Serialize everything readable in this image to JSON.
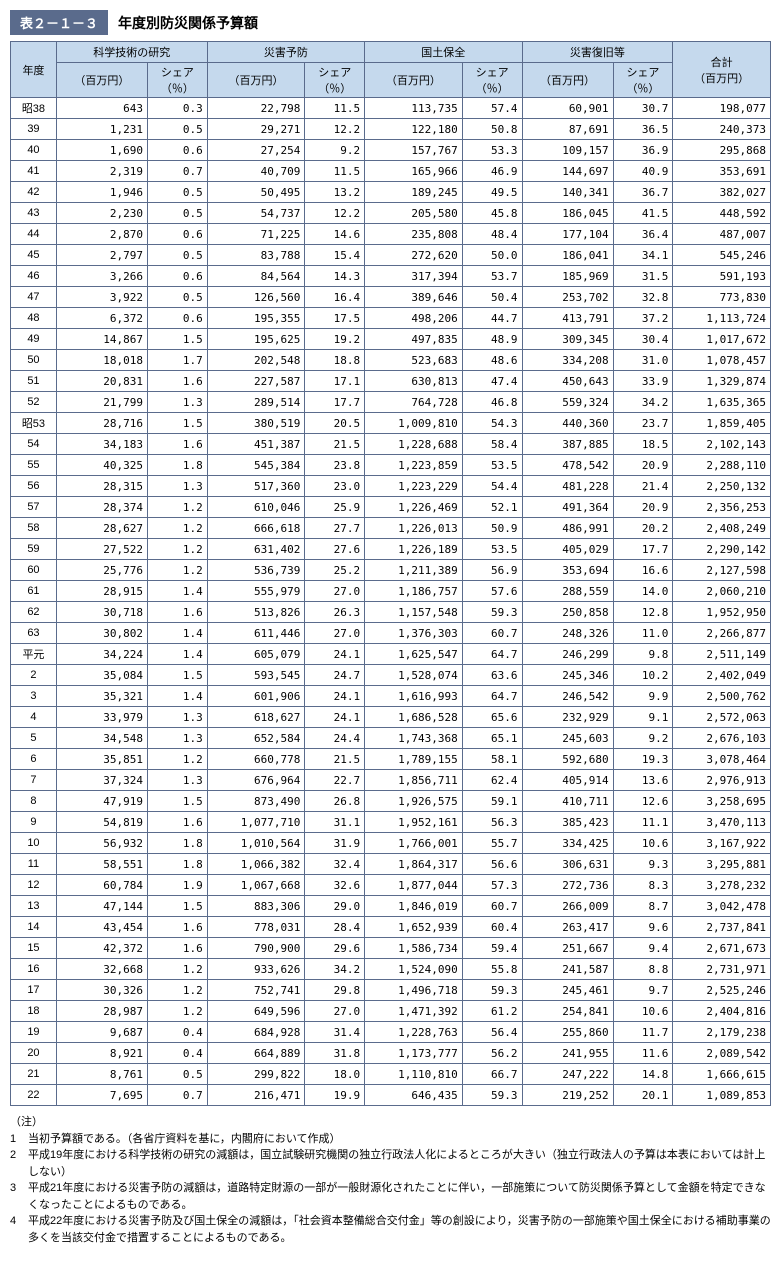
{
  "title": {
    "tag": "表２－１－３",
    "text": "年度別防災関係予算額"
  },
  "table": {
    "type": "table",
    "colors": {
      "header_bg": "#c5d9ed",
      "border": "#5a6b8c",
      "text": "#000000",
      "bg": "#ffffff"
    },
    "header_top": [
      "年度",
      "科学技術の研究",
      "災害予防",
      "国土保全",
      "災害復旧等",
      "合計\n（百万円）"
    ],
    "header_sub_amount": "（百万円）",
    "header_sub_share": "シェア\n（％）",
    "rows": [
      {
        "y": "昭38",
        "a1": "643",
        "s1": "0.3",
        "a2": "22,798",
        "s2": "11.5",
        "a3": "113,735",
        "s3": "57.4",
        "a4": "60,901",
        "s4": "30.7",
        "t": "198,077"
      },
      {
        "y": "39",
        "a1": "1,231",
        "s1": "0.5",
        "a2": "29,271",
        "s2": "12.2",
        "a3": "122,180",
        "s3": "50.8",
        "a4": "87,691",
        "s4": "36.5",
        "t": "240,373"
      },
      {
        "y": "40",
        "a1": "1,690",
        "s1": "0.6",
        "a2": "27,254",
        "s2": "9.2",
        "a3": "157,767",
        "s3": "53.3",
        "a4": "109,157",
        "s4": "36.9",
        "t": "295,868"
      },
      {
        "y": "41",
        "a1": "2,319",
        "s1": "0.7",
        "a2": "40,709",
        "s2": "11.5",
        "a3": "165,966",
        "s3": "46.9",
        "a4": "144,697",
        "s4": "40.9",
        "t": "353,691"
      },
      {
        "y": "42",
        "a1": "1,946",
        "s1": "0.5",
        "a2": "50,495",
        "s2": "13.2",
        "a3": "189,245",
        "s3": "49.5",
        "a4": "140,341",
        "s4": "36.7",
        "t": "382,027"
      },
      {
        "y": "43",
        "a1": "2,230",
        "s1": "0.5",
        "a2": "54,737",
        "s2": "12.2",
        "a3": "205,580",
        "s3": "45.8",
        "a4": "186,045",
        "s4": "41.5",
        "t": "448,592"
      },
      {
        "y": "44",
        "a1": "2,870",
        "s1": "0.6",
        "a2": "71,225",
        "s2": "14.6",
        "a3": "235,808",
        "s3": "48.4",
        "a4": "177,104",
        "s4": "36.4",
        "t": "487,007"
      },
      {
        "y": "45",
        "a1": "2,797",
        "s1": "0.5",
        "a2": "83,788",
        "s2": "15.4",
        "a3": "272,620",
        "s3": "50.0",
        "a4": "186,041",
        "s4": "34.1",
        "t": "545,246"
      },
      {
        "y": "46",
        "a1": "3,266",
        "s1": "0.6",
        "a2": "84,564",
        "s2": "14.3",
        "a3": "317,394",
        "s3": "53.7",
        "a4": "185,969",
        "s4": "31.5",
        "t": "591,193"
      },
      {
        "y": "47",
        "a1": "3,922",
        "s1": "0.5",
        "a2": "126,560",
        "s2": "16.4",
        "a3": "389,646",
        "s3": "50.4",
        "a4": "253,702",
        "s4": "32.8",
        "t": "773,830"
      },
      {
        "y": "48",
        "a1": "6,372",
        "s1": "0.6",
        "a2": "195,355",
        "s2": "17.5",
        "a3": "498,206",
        "s3": "44.7",
        "a4": "413,791",
        "s4": "37.2",
        "t": "1,113,724"
      },
      {
        "y": "49",
        "a1": "14,867",
        "s1": "1.5",
        "a2": "195,625",
        "s2": "19.2",
        "a3": "497,835",
        "s3": "48.9",
        "a4": "309,345",
        "s4": "30.4",
        "t": "1,017,672"
      },
      {
        "y": "50",
        "a1": "18,018",
        "s1": "1.7",
        "a2": "202,548",
        "s2": "18.8",
        "a3": "523,683",
        "s3": "48.6",
        "a4": "334,208",
        "s4": "31.0",
        "t": "1,078,457"
      },
      {
        "y": "51",
        "a1": "20,831",
        "s1": "1.6",
        "a2": "227,587",
        "s2": "17.1",
        "a3": "630,813",
        "s3": "47.4",
        "a4": "450,643",
        "s4": "33.9",
        "t": "1,329,874"
      },
      {
        "y": "52",
        "a1": "21,799",
        "s1": "1.3",
        "a2": "289,514",
        "s2": "17.7",
        "a3": "764,728",
        "s3": "46.8",
        "a4": "559,324",
        "s4": "34.2",
        "t": "1,635,365"
      },
      {
        "y": "昭53",
        "a1": "28,716",
        "s1": "1.5",
        "a2": "380,519",
        "s2": "20.5",
        "a3": "1,009,810",
        "s3": "54.3",
        "a4": "440,360",
        "s4": "23.7",
        "t": "1,859,405"
      },
      {
        "y": "54",
        "a1": "34,183",
        "s1": "1.6",
        "a2": "451,387",
        "s2": "21.5",
        "a3": "1,228,688",
        "s3": "58.4",
        "a4": "387,885",
        "s4": "18.5",
        "t": "2,102,143"
      },
      {
        "y": "55",
        "a1": "40,325",
        "s1": "1.8",
        "a2": "545,384",
        "s2": "23.8",
        "a3": "1,223,859",
        "s3": "53.5",
        "a4": "478,542",
        "s4": "20.9",
        "t": "2,288,110"
      },
      {
        "y": "56",
        "a1": "28,315",
        "s1": "1.3",
        "a2": "517,360",
        "s2": "23.0",
        "a3": "1,223,229",
        "s3": "54.4",
        "a4": "481,228",
        "s4": "21.4",
        "t": "2,250,132"
      },
      {
        "y": "57",
        "a1": "28,374",
        "s1": "1.2",
        "a2": "610,046",
        "s2": "25.9",
        "a3": "1,226,469",
        "s3": "52.1",
        "a4": "491,364",
        "s4": "20.9",
        "t": "2,356,253"
      },
      {
        "y": "58",
        "a1": "28,627",
        "s1": "1.2",
        "a2": "666,618",
        "s2": "27.7",
        "a3": "1,226,013",
        "s3": "50.9",
        "a4": "486,991",
        "s4": "20.2",
        "t": "2,408,249"
      },
      {
        "y": "59",
        "a1": "27,522",
        "s1": "1.2",
        "a2": "631,402",
        "s2": "27.6",
        "a3": "1,226,189",
        "s3": "53.5",
        "a4": "405,029",
        "s4": "17.7",
        "t": "2,290,142"
      },
      {
        "y": "60",
        "a1": "25,776",
        "s1": "1.2",
        "a2": "536,739",
        "s2": "25.2",
        "a3": "1,211,389",
        "s3": "56.9",
        "a4": "353,694",
        "s4": "16.6",
        "t": "2,127,598"
      },
      {
        "y": "61",
        "a1": "28,915",
        "s1": "1.4",
        "a2": "555,979",
        "s2": "27.0",
        "a3": "1,186,757",
        "s3": "57.6",
        "a4": "288,559",
        "s4": "14.0",
        "t": "2,060,210"
      },
      {
        "y": "62",
        "a1": "30,718",
        "s1": "1.6",
        "a2": "513,826",
        "s2": "26.3",
        "a3": "1,157,548",
        "s3": "59.3",
        "a4": "250,858",
        "s4": "12.8",
        "t": "1,952,950"
      },
      {
        "y": "63",
        "a1": "30,802",
        "s1": "1.4",
        "a2": "611,446",
        "s2": "27.0",
        "a3": "1,376,303",
        "s3": "60.7",
        "a4": "248,326",
        "s4": "11.0",
        "t": "2,266,877"
      },
      {
        "y": "平元",
        "a1": "34,224",
        "s1": "1.4",
        "a2": "605,079",
        "s2": "24.1",
        "a3": "1,625,547",
        "s3": "64.7",
        "a4": "246,299",
        "s4": "9.8",
        "t": "2,511,149"
      },
      {
        "y": "2",
        "a1": "35,084",
        "s1": "1.5",
        "a2": "593,545",
        "s2": "24.7",
        "a3": "1,528,074",
        "s3": "63.6",
        "a4": "245,346",
        "s4": "10.2",
        "t": "2,402,049"
      },
      {
        "y": "3",
        "a1": "35,321",
        "s1": "1.4",
        "a2": "601,906",
        "s2": "24.1",
        "a3": "1,616,993",
        "s3": "64.7",
        "a4": "246,542",
        "s4": "9.9",
        "t": "2,500,762"
      },
      {
        "y": "4",
        "a1": "33,979",
        "s1": "1.3",
        "a2": "618,627",
        "s2": "24.1",
        "a3": "1,686,528",
        "s3": "65.6",
        "a4": "232,929",
        "s4": "9.1",
        "t": "2,572,063"
      },
      {
        "y": "5",
        "a1": "34,548",
        "s1": "1.3",
        "a2": "652,584",
        "s2": "24.4",
        "a3": "1,743,368",
        "s3": "65.1",
        "a4": "245,603",
        "s4": "9.2",
        "t": "2,676,103"
      },
      {
        "y": "6",
        "a1": "35,851",
        "s1": "1.2",
        "a2": "660,778",
        "s2": "21.5",
        "a3": "1,789,155",
        "s3": "58.1",
        "a4": "592,680",
        "s4": "19.3",
        "t": "3,078,464"
      },
      {
        "y": "7",
        "a1": "37,324",
        "s1": "1.3",
        "a2": "676,964",
        "s2": "22.7",
        "a3": "1,856,711",
        "s3": "62.4",
        "a4": "405,914",
        "s4": "13.6",
        "t": "2,976,913"
      },
      {
        "y": "8",
        "a1": "47,919",
        "s1": "1.5",
        "a2": "873,490",
        "s2": "26.8",
        "a3": "1,926,575",
        "s3": "59.1",
        "a4": "410,711",
        "s4": "12.6",
        "t": "3,258,695"
      },
      {
        "y": "9",
        "a1": "54,819",
        "s1": "1.6",
        "a2": "1,077,710",
        "s2": "31.1",
        "a3": "1,952,161",
        "s3": "56.3",
        "a4": "385,423",
        "s4": "11.1",
        "t": "3,470,113"
      },
      {
        "y": "10",
        "a1": "56,932",
        "s1": "1.8",
        "a2": "1,010,564",
        "s2": "31.9",
        "a3": "1,766,001",
        "s3": "55.7",
        "a4": "334,425",
        "s4": "10.6",
        "t": "3,167,922"
      },
      {
        "y": "11",
        "a1": "58,551",
        "s1": "1.8",
        "a2": "1,066,382",
        "s2": "32.4",
        "a3": "1,864,317",
        "s3": "56.6",
        "a4": "306,631",
        "s4": "9.3",
        "t": "3,295,881"
      },
      {
        "y": "12",
        "a1": "60,784",
        "s1": "1.9",
        "a2": "1,067,668",
        "s2": "32.6",
        "a3": "1,877,044",
        "s3": "57.3",
        "a4": "272,736",
        "s4": "8.3",
        "t": "3,278,232"
      },
      {
        "y": "13",
        "a1": "47,144",
        "s1": "1.5",
        "a2": "883,306",
        "s2": "29.0",
        "a3": "1,846,019",
        "s3": "60.7",
        "a4": "266,009",
        "s4": "8.7",
        "t": "3,042,478"
      },
      {
        "y": "14",
        "a1": "43,454",
        "s1": "1.6",
        "a2": "778,031",
        "s2": "28.4",
        "a3": "1,652,939",
        "s3": "60.4",
        "a4": "263,417",
        "s4": "9.6",
        "t": "2,737,841"
      },
      {
        "y": "15",
        "a1": "42,372",
        "s1": "1.6",
        "a2": "790,900",
        "s2": "29.6",
        "a3": "1,586,734",
        "s3": "59.4",
        "a4": "251,667",
        "s4": "9.4",
        "t": "2,671,673"
      },
      {
        "y": "16",
        "a1": "32,668",
        "s1": "1.2",
        "a2": "933,626",
        "s2": "34.2",
        "a3": "1,524,090",
        "s3": "55.8",
        "a4": "241,587",
        "s4": "8.8",
        "t": "2,731,971"
      },
      {
        "y": "17",
        "a1": "30,326",
        "s1": "1.2",
        "a2": "752,741",
        "s2": "29.8",
        "a3": "1,496,718",
        "s3": "59.3",
        "a4": "245,461",
        "s4": "9.7",
        "t": "2,525,246"
      },
      {
        "y": "18",
        "a1": "28,987",
        "s1": "1.2",
        "a2": "649,596",
        "s2": "27.0",
        "a3": "1,471,392",
        "s3": "61.2",
        "a4": "254,841",
        "s4": "10.6",
        "t": "2,404,816"
      },
      {
        "y": "19",
        "a1": "9,687",
        "s1": "0.4",
        "a2": "684,928",
        "s2": "31.4",
        "a3": "1,228,763",
        "s3": "56.4",
        "a4": "255,860",
        "s4": "11.7",
        "t": "2,179,238"
      },
      {
        "y": "20",
        "a1": "8,921",
        "s1": "0.4",
        "a2": "664,889",
        "s2": "31.8",
        "a3": "1,173,777",
        "s3": "56.2",
        "a4": "241,955",
        "s4": "11.6",
        "t": "2,089,542"
      },
      {
        "y": "21",
        "a1": "8,761",
        "s1": "0.5",
        "a2": "299,822",
        "s2": "18.0",
        "a3": "1,110,810",
        "s3": "66.7",
        "a4": "247,222",
        "s4": "14.8",
        "t": "1,666,615"
      },
      {
        "y": "22",
        "a1": "7,695",
        "s1": "0.7",
        "a2": "216,471",
        "s2": "19.9",
        "a3": "646,435",
        "s3": "59.3",
        "a4": "219,252",
        "s4": "20.1",
        "t": "1,089,853"
      }
    ]
  },
  "notes": {
    "label": "（注）",
    "items": [
      {
        "n": "1",
        "t": "当初予算額である。（各省庁資料を基に，内閣府において作成）"
      },
      {
        "n": "2",
        "t": "平成19年度における科学技術の研究の減額は，国立試験研究機関の独立行政法人化によるところが大きい（独立行政法人の予算は本表においては計上しない）"
      },
      {
        "n": "3",
        "t": "平成21年度における災害予防の減額は，道路特定財源の一部が一般財源化されたことに伴い，一部施策について防災関係予算として金額を特定できなくなったことによるものである。"
      },
      {
        "n": "4",
        "t": "平成22年度における災害予防及び国土保全の減額は，「社会資本整備総合交付金」等の創設により，災害予防の一部施策や国土保全における補助事業の多くを当該交付金で措置することによるものである。"
      }
    ]
  }
}
